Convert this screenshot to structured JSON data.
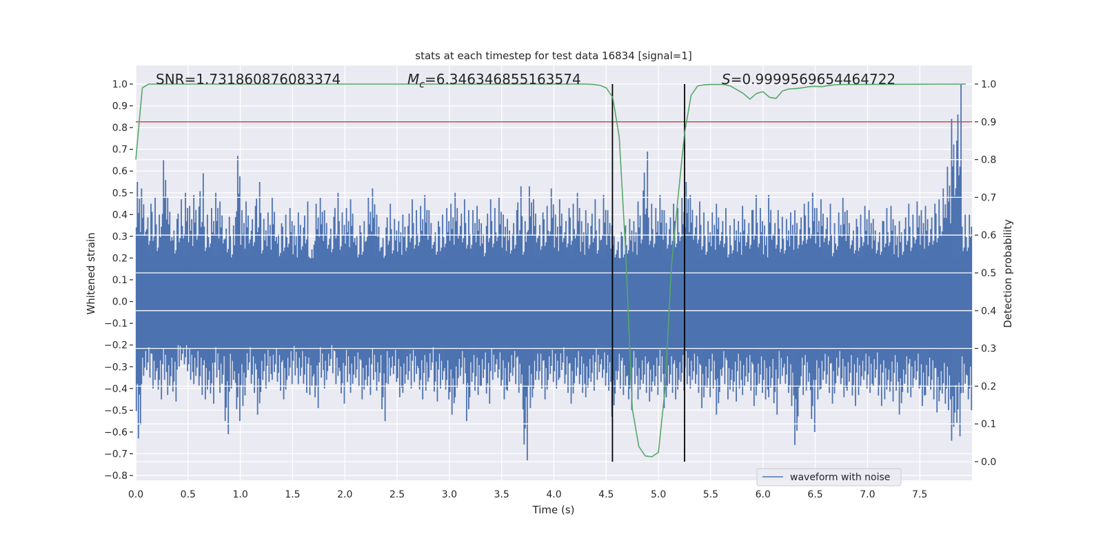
{
  "chart_data": {
    "type": "line",
    "title": "stats at each timestep for test data 16834 [signal=1]",
    "xlabel": "Time (s)",
    "ylabel": "Whitened strain",
    "ylabel_right": "Detection probability",
    "xlim": [
      0,
      8
    ],
    "ylim": [
      -0.83,
      1.08
    ],
    "ylim_right": [
      -0.05,
      1.05
    ],
    "x_ticks": [
      "0.0",
      "0.5",
      "1.0",
      "1.5",
      "2.0",
      "2.5",
      "3.0",
      "3.5",
      "4.0",
      "4.5",
      "5.0",
      "5.5",
      "6.0",
      "6.5",
      "7.0",
      "7.5"
    ],
    "y_ticks": [
      "1.0",
      "0.9",
      "0.8",
      "0.7",
      "0.6",
      "0.5",
      "0.4",
      "0.3",
      "0.2",
      "0.1",
      "0.0",
      "−0.1",
      "−0.2",
      "−0.3",
      "−0.4",
      "−0.5",
      "−0.6",
      "−0.7",
      "−0.8"
    ],
    "y_ticks_right": [
      "1.0",
      "0.9",
      "0.8",
      "0.7",
      "0.6",
      "0.5",
      "0.4",
      "0.3",
      "0.2",
      "0.1",
      "0.0"
    ],
    "grid": true,
    "annotations": {
      "snr": "SNR=1.731860876083374",
      "mc_symbol": "M",
      "mc_sub": "c",
      "mc_value": "=6.346346855163574",
      "s_symbol": "S",
      "s_value": "=0.9999569654464722"
    },
    "legend": {
      "placement": "lower-right",
      "entries": [
        "waveform with noise"
      ]
    },
    "colors": {
      "waveform": "#4c72b0",
      "probability": "#55a868",
      "threshold": "#c44e52",
      "markers": "#000000",
      "background": "#eaeaf2"
    },
    "threshold_right": 0.9,
    "vertical_markers": [
      4.56,
      5.25
    ],
    "waveform_envelope": {
      "bin_width": 0.05,
      "max": [
        0.55,
        0.52,
        0.45,
        0.48,
        0.4,
        0.65,
        0.48,
        0.38,
        0.47,
        0.5,
        0.44,
        0.49,
        0.59,
        0.4,
        0.43,
        0.5,
        0.46,
        0.39,
        0.35,
        0.67,
        0.42,
        0.46,
        0.44,
        0.55,
        0.38,
        0.41,
        0.48,
        0.36,
        0.4,
        0.43,
        0.35,
        0.41,
        0.46,
        0.24,
        0.45,
        0.48,
        0.42,
        0.39,
        0.5,
        0.41,
        0.43,
        0.47,
        0.35,
        0.37,
        0.48,
        0.52,
        0.4,
        0.34,
        0.45,
        0.38,
        0.37,
        0.4,
        0.47,
        0.42,
        0.44,
        0.49,
        0.42,
        0.37,
        0.4,
        0.43,
        0.45,
        0.5,
        0.47,
        0.42,
        0.42,
        0.44,
        0.36,
        0.47,
        0.43,
        0.48,
        0.4,
        0.38,
        0.42,
        0.53,
        0.37,
        0.53,
        0.47,
        0.41,
        0.44,
        0.52,
        0.4,
        0.47,
        0.43,
        0.45,
        0.5,
        0.37,
        0.42,
        0.47,
        0.38,
        0.49,
        0.42,
        0.35,
        0.32,
        0.35,
        0.38,
        0.37,
        0.46,
        0.69,
        0.45,
        0.43,
        0.49,
        0.42,
        0.45,
        0.43,
        0.48,
        0.55,
        0.49,
        0.46,
        0.41,
        0.37,
        0.41,
        0.45,
        0.43,
        0.35,
        0.38,
        0.37,
        0.44,
        0.42,
        0.49,
        0.43,
        0.35,
        0.49,
        0.42,
        0.39,
        0.38,
        0.41,
        0.42,
        0.45,
        0.46,
        0.5,
        0.43,
        0.47,
        0.45,
        0.36,
        0.41,
        0.48,
        0.42,
        0.38,
        0.4,
        0.44,
        0.42,
        0.38,
        0.37,
        0.43,
        0.44,
        0.35,
        0.37,
        0.45,
        0.4,
        0.46,
        0.42,
        0.44,
        0.45,
        0.47,
        0.52,
        0.62,
        0.84,
        1.0,
        0.4,
        0.4
      ],
      "min": [
        -0.63,
        -0.38,
        -0.35,
        -0.4,
        -0.45,
        -0.36,
        -0.43,
        -0.46,
        -0.3,
        -0.32,
        -0.36,
        -0.38,
        -0.43,
        -0.45,
        -0.47,
        -0.35,
        -0.42,
        -0.61,
        -0.4,
        -0.55,
        -0.48,
        -0.35,
        -0.42,
        -0.52,
        -0.4,
        -0.37,
        -0.36,
        -0.41,
        -0.45,
        -0.38,
        -0.34,
        -0.38,
        -0.42,
        -0.43,
        -0.49,
        -0.35,
        -0.4,
        -0.33,
        -0.38,
        -0.47,
        -0.37,
        -0.42,
        -0.39,
        -0.45,
        -0.43,
        -0.36,
        -0.41,
        -0.55,
        -0.38,
        -0.37,
        -0.44,
        -0.42,
        -0.4,
        -0.37,
        -0.45,
        -0.41,
        -0.35,
        -0.46,
        -0.4,
        -0.45,
        -0.52,
        -0.44,
        -0.38,
        -0.55,
        -0.41,
        -0.43,
        -0.39,
        -0.47,
        -0.36,
        -0.39,
        -0.45,
        -0.41,
        -0.38,
        -0.42,
        -0.73,
        -0.49,
        -0.4,
        -0.4,
        -0.45,
        -0.37,
        -0.4,
        -0.35,
        -0.42,
        -0.47,
        -0.38,
        -0.42,
        -0.44,
        -0.41,
        -0.36,
        -0.39,
        -0.41,
        -0.53,
        -0.4,
        -0.43,
        -0.5,
        -0.38,
        -0.45,
        -0.42,
        -0.46,
        -0.43,
        -0.37,
        -0.49,
        -0.42,
        -0.45,
        -0.41,
        -0.38,
        -0.4,
        -0.42,
        -0.49,
        -0.44,
        -0.4,
        -0.52,
        -0.38,
        -0.45,
        -0.46,
        -0.4,
        -0.43,
        -0.41,
        -0.48,
        -0.42,
        -0.45,
        -0.44,
        -0.52,
        -0.38,
        -0.42,
        -0.48,
        -0.66,
        -0.43,
        -0.41,
        -0.6,
        -0.45,
        -0.4,
        -0.42,
        -0.47,
        -0.38,
        -0.44,
        -0.41,
        -0.48,
        -0.43,
        -0.4,
        -0.42,
        -0.39,
        -0.48,
        -0.45,
        -0.46,
        -0.41,
        -0.52,
        -0.42,
        -0.44,
        -0.4,
        -0.48,
        -0.43,
        -0.45,
        -0.51,
        -0.47,
        -0.5,
        -0.64,
        -0.62,
        -0.42,
        -0.5
      ]
    },
    "series": [
      {
        "name": "detection probability",
        "axis": "right",
        "x": [
          0.0,
          0.0625,
          0.125,
          4.3,
          4.375,
          4.4375,
          4.5,
          4.5625,
          4.625,
          4.6875,
          4.75,
          4.8125,
          4.875,
          4.9375,
          5.0,
          5.0625,
          5.125,
          5.1875,
          5.25,
          5.3125,
          5.375,
          5.4375,
          5.5,
          5.5625,
          5.625,
          5.6875,
          5.75,
          5.8125,
          5.875,
          5.9375,
          6.0,
          6.0625,
          6.125,
          6.1875,
          6.25,
          6.3125,
          6.375,
          6.4375,
          6.5,
          6.5625,
          6.625,
          6.6875,
          6.75,
          7.94
        ],
        "y": [
          0.8,
          0.99,
          1.0,
          1.0,
          0.999,
          0.997,
          0.99,
          0.965,
          0.86,
          0.55,
          0.14,
          0.04,
          0.015,
          0.013,
          0.025,
          0.19,
          0.52,
          0.7,
          0.87,
          0.97,
          0.995,
          0.998,
          0.999,
          0.999,
          0.999,
          0.995,
          0.985,
          0.975,
          0.96,
          0.975,
          0.98,
          0.965,
          0.962,
          0.982,
          0.987,
          0.988,
          0.99,
          0.993,
          0.994,
          0.993,
          0.996,
          0.998,
          0.999,
          1.0
        ]
      }
    ]
  }
}
